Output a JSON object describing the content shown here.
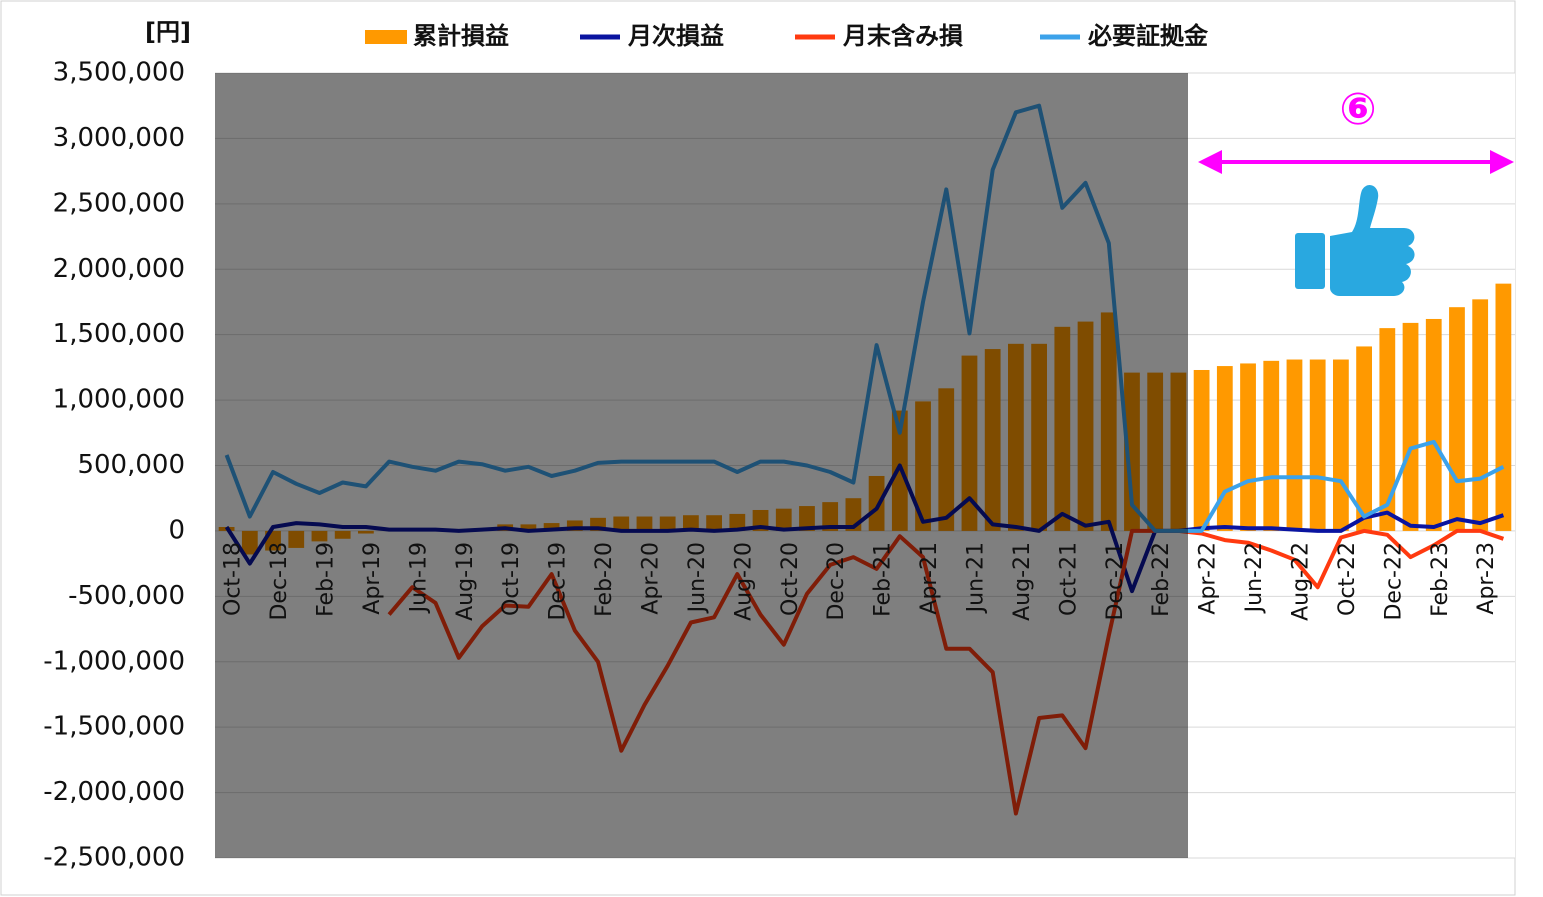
{
  "chart_data": {
    "type": "bar_line",
    "y_unit_label": "[円]",
    "annotation": "⑥",
    "categories": [
      "Oct-18",
      null,
      "Dec-18",
      null,
      "Feb-19",
      null,
      "Apr-19",
      null,
      "Jun-19",
      null,
      "Aug-19",
      null,
      "Oct-19",
      null,
      "Dec-19",
      null,
      "Feb-20",
      null,
      "Apr-20",
      null,
      "Jun-20",
      null,
      "Aug-20",
      null,
      "Oct-20",
      null,
      "Dec-20",
      null,
      "Feb-21",
      null,
      "Apr-21",
      null,
      "Jun-21",
      null,
      "Aug-21",
      null,
      "Oct-21",
      null,
      "Dec-21",
      null,
      "Feb-22",
      null,
      "Apr-22",
      null,
      "Jun-22",
      null,
      "Aug-22",
      null,
      "Oct-22",
      null,
      "Dec-22",
      null,
      "Feb-23",
      null,
      "Apr-23",
      null
    ],
    "series": [
      {
        "name": "累計損益",
        "kind": "bar",
        "color": "#ff9900",
        "values": [
          30000,
          -180000,
          -150000,
          -130000,
          -80000,
          -60000,
          -20000,
          0,
          10000,
          10000,
          10000,
          20000,
          50000,
          50000,
          60000,
          80000,
          100000,
          110000,
          110000,
          110000,
          120000,
          120000,
          130000,
          160000,
          170000,
          190000,
          220000,
          250000,
          420000,
          920000,
          990000,
          1090000,
          1340000,
          1390000,
          1430000,
          1430000,
          1560000,
          1600000,
          1670000,
          1210000,
          1210000,
          1210000,
          1230000,
          1260000,
          1280000,
          1300000,
          1310000,
          1310000,
          1310000,
          1410000,
          1550000,
          1590000,
          1620000,
          1710000,
          1770000,
          1890000
        ]
      },
      {
        "name": "月次損益",
        "kind": "line",
        "color": "#0a14a0",
        "values": [
          30000,
          -250000,
          30000,
          60000,
          50000,
          30000,
          30000,
          10000,
          10000,
          10000,
          0,
          10000,
          20000,
          0,
          10000,
          20000,
          20000,
          0,
          0,
          0,
          10000,
          0,
          10000,
          30000,
          10000,
          20000,
          30000,
          30000,
          170000,
          500000,
          70000,
          100000,
          250000,
          50000,
          30000,
          0,
          130000,
          40000,
          70000,
          -460000,
          0,
          0,
          20000,
          30000,
          20000,
          20000,
          10000,
          0,
          0,
          100000,
          140000,
          40000,
          30000,
          90000,
          60000,
          120000
        ]
      },
      {
        "name": "月末含み損",
        "kind": "line",
        "color": "#ff3a10",
        "values": [
          null,
          null,
          null,
          null,
          null,
          null,
          null,
          -640000,
          -430000,
          -550000,
          -970000,
          -730000,
          -570000,
          -580000,
          -330000,
          -760000,
          -1000000,
          -1680000,
          -1330000,
          -1030000,
          -700000,
          -660000,
          -330000,
          -640000,
          -870000,
          -480000,
          -260000,
          -200000,
          -290000,
          -40000,
          -200000,
          -900000,
          -900000,
          -1080000,
          -2160000,
          -1430000,
          -1410000,
          -1660000,
          -800000,
          0,
          0,
          0,
          -20000,
          -70000,
          -90000,
          -150000,
          -220000,
          -430000,
          -50000,
          0,
          -30000,
          -200000,
          -110000,
          0,
          0,
          -60000
        ]
      },
      {
        "name": "必要証拠金",
        "kind": "line",
        "color": "#3ca2ea",
        "values": [
          580000,
          110000,
          450000,
          360000,
          290000,
          370000,
          340000,
          530000,
          490000,
          460000,
          530000,
          510000,
          460000,
          490000,
          420000,
          460000,
          520000,
          530000,
          530000,
          530000,
          530000,
          530000,
          450000,
          530000,
          530000,
          500000,
          450000,
          370000,
          1420000,
          750000,
          1750000,
          2610000,
          1510000,
          2760000,
          3200000,
          3250000,
          2470000,
          2660000,
          2200000,
          200000,
          0,
          0,
          0,
          300000,
          380000,
          410000,
          410000,
          410000,
          380000,
          110000,
          200000,
          630000,
          680000,
          380000,
          400000,
          490000
        ]
      }
    ],
    "ylim": [
      -2500000,
      3500000
    ],
    "yticks": [
      {
        "value": -2500000,
        "label": "-2,500,000"
      },
      {
        "value": -2000000,
        "label": "-2,000,000"
      },
      {
        "value": -1500000,
        "label": "-1,500,000"
      },
      {
        "value": -1000000,
        "label": "-1,000,000"
      },
      {
        "value": -500000,
        "label": "-500,000"
      },
      0,
      {
        "value": 500000,
        "label": "500,000"
      },
      {
        "value": 1000000,
        "label": "1,000,000"
      },
      {
        "value": 1500000,
        "label": "1,500,000"
      },
      {
        "value": 2000000,
        "label": "2,000,000"
      },
      {
        "value": 2500000,
        "label": "2,500,000"
      },
      {
        "value": 3000000,
        "label": "3,000,000"
      },
      {
        "value": 3500000,
        "label": "3,500,000"
      }
    ],
    "grid": true,
    "legend": "top"
  }
}
